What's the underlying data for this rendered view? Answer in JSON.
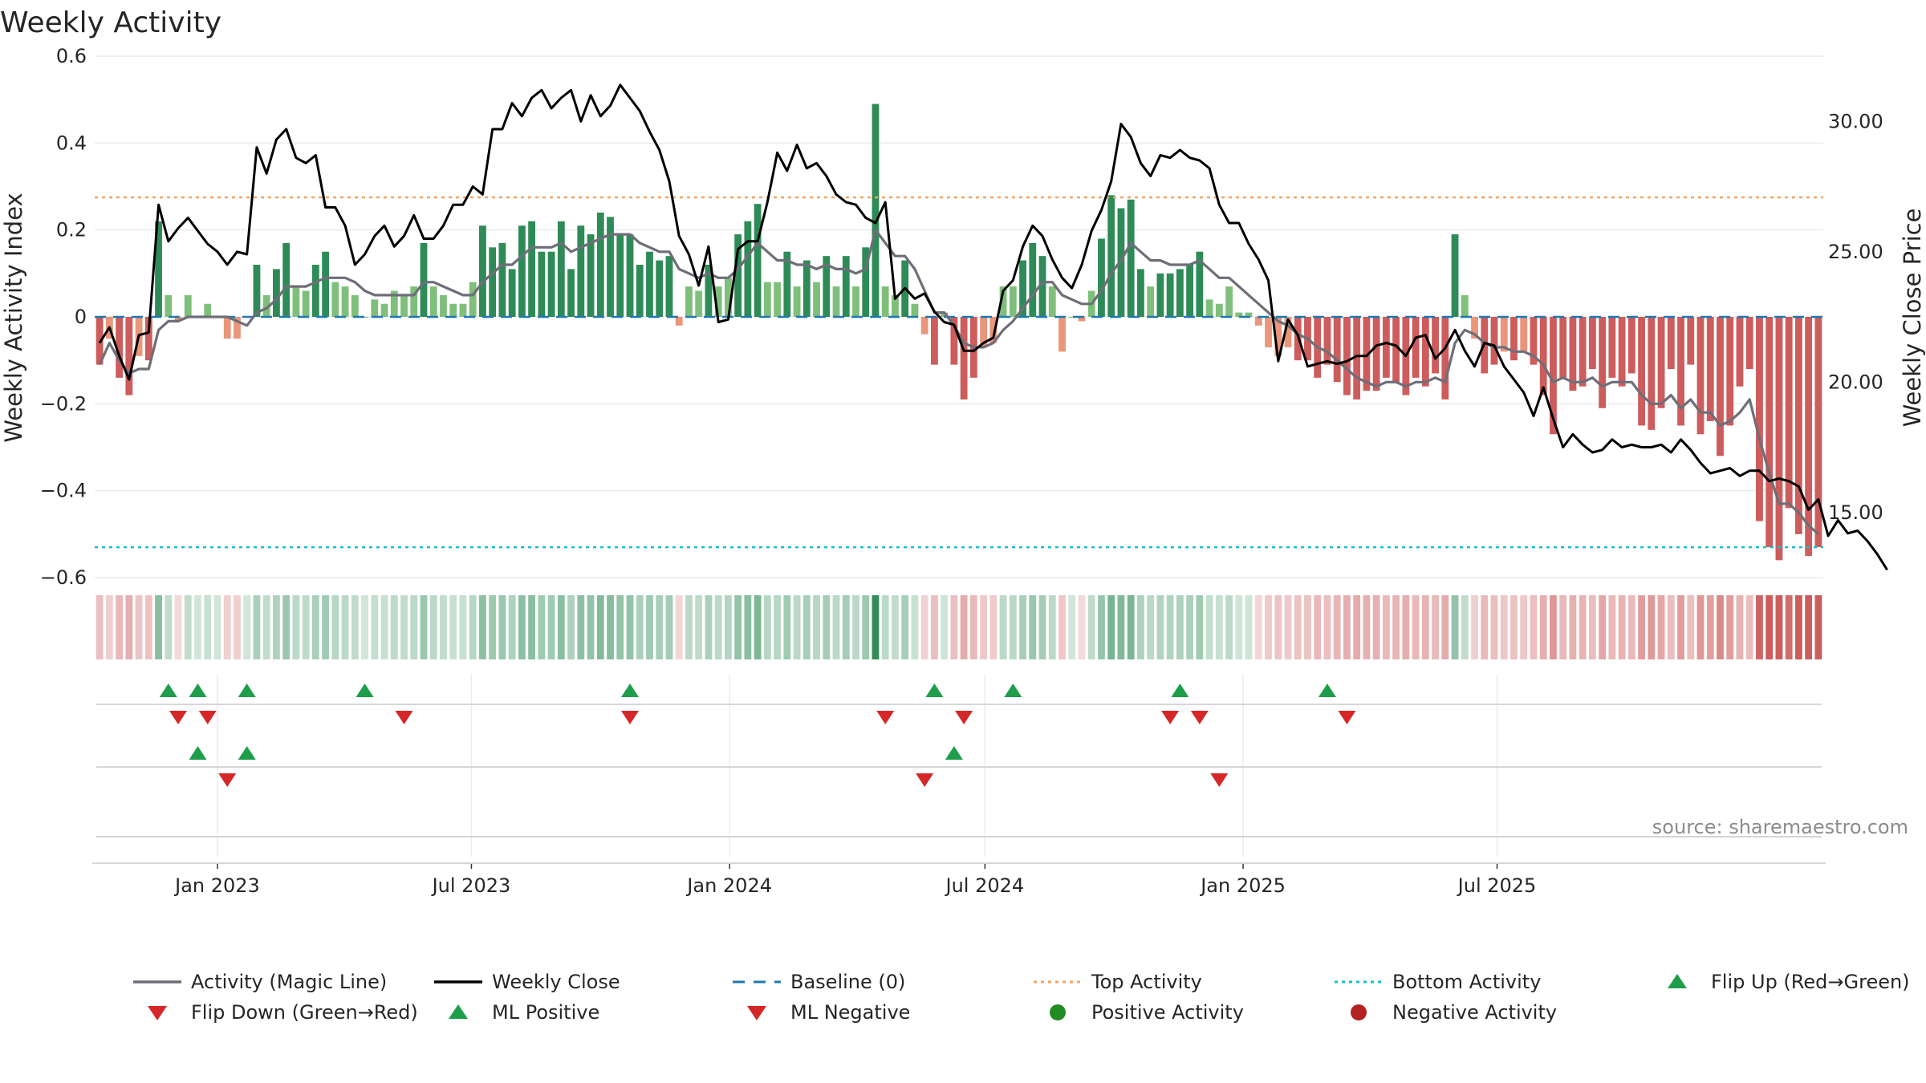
{
  "title": "Weekly Activity",
  "source": "source: sharemaestro.com",
  "colors": {
    "strong_positive": "#2e8b57",
    "weak_positive": "#7fbf7b",
    "strong_negative": "#cd5c5c",
    "weak_negative": "#e9967a",
    "magic_line": "#6e6e78",
    "close_line": "#000000",
    "baseline": "#1f77b4",
    "top_line": "#f4a460",
    "bottom_line": "#17becf",
    "flip_up": "#1e9e4a",
    "flip_down": "#d62728",
    "pos_dot": "#228b22",
    "neg_dot": "#b22222"
  },
  "chart_data": {
    "type": "bar",
    "title": "Weekly Activity",
    "ylabel": "Weekly Activity Index",
    "y2label": "Weekly Close Price",
    "ylim": [
      -0.6,
      0.6
    ],
    "y2lim": [
      12.5,
      32.5
    ],
    "yticks": [
      0.6,
      0.4,
      0.2,
      0,
      -0.2,
      -0.4,
      -0.6
    ],
    "ytick_labels": [
      "0.6",
      "0.4",
      "0.2",
      "0",
      "−0.2",
      "−0.4",
      "−0.6"
    ],
    "y2ticks": [
      30,
      25,
      20,
      15
    ],
    "y2tick_labels": [
      "30.00",
      "25.00",
      "20.00",
      "15.00"
    ],
    "x_start": "2022-10-09",
    "x_step_days": 7,
    "xticks": [
      "2023-01-01",
      "2023-07-01",
      "2024-01-01",
      "2024-07-01",
      "2025-01-01",
      "2025-07-01"
    ],
    "xtick_labels": [
      "Jan 2023",
      "Jul 2023",
      "Jan 2024",
      "Jul 2024",
      "Jan 2025",
      "Jul 2025"
    ],
    "grid": true,
    "legend_placement": "bottom",
    "reference_lines": {
      "baseline": 0,
      "top_activity": 0.275,
      "bottom_activity": -0.53
    },
    "series": [
      {
        "name": "Activity",
        "kind": "bar",
        "values": [
          -0.11,
          -0.05,
          -0.14,
          -0.18,
          -0.09,
          -0.1,
          0.22,
          0.05,
          -0.01,
          0.05,
          0,
          0.03,
          0,
          -0.05,
          -0.05,
          0,
          0.12,
          0.05,
          0.11,
          0.17,
          0.07,
          0.06,
          0.12,
          0.15,
          0.08,
          0.07,
          0.05,
          0,
          0.04,
          0.03,
          0.06,
          0.05,
          0.07,
          0.17,
          0.07,
          0.05,
          0.03,
          0.03,
          0.08,
          0.21,
          0.16,
          0.17,
          0.11,
          0.21,
          0.22,
          0.15,
          0.15,
          0.22,
          0.11,
          0.21,
          0.19,
          0.24,
          0.23,
          0.19,
          0.19,
          0.12,
          0.15,
          0.13,
          0.14,
          -0.02,
          0.07,
          0.06,
          0.12,
          0.07,
          0.09,
          0.19,
          0.22,
          0.26,
          0.08,
          0.08,
          0.15,
          0.07,
          0.13,
          0.08,
          0.14,
          0.07,
          0.14,
          0.07,
          0.16,
          0.49,
          0.07,
          0.05,
          0.13,
          0.03,
          -0.04,
          -0.11,
          0.01,
          -0.11,
          -0.19,
          -0.14,
          -0.07,
          -0.06,
          0.07,
          0.07,
          0.13,
          0.17,
          0.14,
          0.07,
          -0.08,
          0,
          -0.01,
          0.06,
          0.18,
          0.28,
          0.25,
          0.27,
          0.11,
          0.07,
          0.1,
          0.1,
          0.11,
          0.12,
          0.15,
          0.04,
          0.03,
          0.07,
          0.01,
          0.01,
          -0.02,
          -0.07,
          -0.09,
          -0.07,
          -0.1,
          -0.1,
          -0.14,
          -0.11,
          -0.15,
          -0.18,
          -0.19,
          -0.17,
          -0.17,
          -0.14,
          -0.15,
          -0.18,
          -0.14,
          -0.16,
          -0.13,
          -0.19,
          0.19,
          0.05,
          -0.05,
          -0.13,
          -0.11,
          -0.08,
          -0.1,
          -0.08,
          -0.11,
          -0.18,
          -0.27,
          -0.14,
          -0.17,
          -0.16,
          -0.12,
          -0.21,
          -0.14,
          -0.16,
          -0.13,
          -0.25,
          -0.26,
          -0.21,
          -0.12,
          -0.25,
          -0.11,
          -0.27,
          -0.24,
          -0.32,
          -0.25,
          -0.16,
          -0.12,
          -0.47,
          -0.53,
          -0.56,
          -0.44,
          -0.5,
          -0.55,
          -0.53
        ]
      },
      {
        "name": "Activity (Magic Line)",
        "kind": "line",
        "values": [
          -0.11,
          -0.06,
          -0.1,
          -0.13,
          -0.12,
          -0.12,
          -0.03,
          -0.01,
          -0.01,
          0,
          0,
          0,
          0,
          0,
          -0.01,
          -0.02,
          0.01,
          0.02,
          0.04,
          0.07,
          0.07,
          0.07,
          0.08,
          0.09,
          0.09,
          0.09,
          0.08,
          0.06,
          0.05,
          0.05,
          0.05,
          0.05,
          0.05,
          0.08,
          0.08,
          0.07,
          0.06,
          0.05,
          0.05,
          0.08,
          0.1,
          0.12,
          0.12,
          0.14,
          0.16,
          0.16,
          0.16,
          0.17,
          0.15,
          0.16,
          0.17,
          0.18,
          0.19,
          0.19,
          0.19,
          0.17,
          0.16,
          0.15,
          0.15,
          0.11,
          0.1,
          0.09,
          0.1,
          0.09,
          0.09,
          0.11,
          0.14,
          0.17,
          0.15,
          0.13,
          0.13,
          0.12,
          0.12,
          0.11,
          0.12,
          0.11,
          0.11,
          0.1,
          0.11,
          0.2,
          0.17,
          0.14,
          0.14,
          0.11,
          0.06,
          0.01,
          0.01,
          -0.02,
          -0.06,
          -0.07,
          -0.07,
          -0.06,
          -0.03,
          -0.01,
          0.02,
          0.05,
          0.08,
          0.08,
          0.05,
          0.04,
          0.03,
          0.03,
          0.06,
          0.1,
          0.13,
          0.17,
          0.15,
          0.13,
          0.13,
          0.12,
          0.12,
          0.12,
          0.13,
          0.11,
          0.09,
          0.09,
          0.07,
          0.05,
          0.03,
          0.01,
          -0.01,
          -0.02,
          -0.04,
          -0.05,
          -0.07,
          -0.08,
          -0.1,
          -0.12,
          -0.14,
          -0.15,
          -0.16,
          -0.15,
          -0.15,
          -0.16,
          -0.15,
          -0.15,
          -0.14,
          -0.15,
          -0.06,
          -0.03,
          -0.04,
          -0.06,
          -0.07,
          -0.07,
          -0.08,
          -0.08,
          -0.09,
          -0.11,
          -0.15,
          -0.14,
          -0.15,
          -0.15,
          -0.14,
          -0.16,
          -0.15,
          -0.15,
          -0.15,
          -0.18,
          -0.2,
          -0.2,
          -0.18,
          -0.21,
          -0.19,
          -0.22,
          -0.22,
          -0.25,
          -0.24,
          -0.22,
          -0.19,
          -0.28,
          -0.36,
          -0.43,
          -0.43,
          -0.45,
          -0.48,
          -0.5
        ]
      },
      {
        "name": "Weekly Close",
        "kind": "line",
        "axis": "right",
        "values": [
          21.5,
          22.1,
          21,
          20.1,
          21.8,
          21.9,
          26.8,
          25.4,
          25.9,
          26.3,
          25.8,
          25.3,
          25,
          24.5,
          25,
          24.9,
          29,
          28,
          29.3,
          29.7,
          28.6,
          28.4,
          28.7,
          26.7,
          26.7,
          26,
          24.5,
          24.9,
          25.6,
          26,
          25.2,
          25.6,
          26.4,
          25.5,
          25.5,
          26,
          26.8,
          26.8,
          27.5,
          27.2,
          29.7,
          29.7,
          30.7,
          30.2,
          30.9,
          31.2,
          30.5,
          30.9,
          31.2,
          30,
          31,
          30.2,
          30.6,
          31.4,
          30.9,
          30.4,
          29.6,
          28.9,
          27.7,
          25.6,
          24.9,
          23.7,
          25.2,
          22.3,
          22.4,
          25.1,
          25.4,
          25.4,
          26.9,
          28.8,
          28.1,
          29.1,
          28.2,
          28.4,
          27.9,
          27.2,
          26.9,
          26.8,
          26.3,
          26.1,
          26.9,
          23.2,
          23.6,
          23.2,
          23.4,
          22.7,
          22.3,
          22.2,
          21.2,
          21.2,
          21.5,
          21.7,
          23.5,
          23.9,
          25.2,
          26,
          25.6,
          24.7,
          24,
          23.6,
          24.5,
          25.8,
          26.6,
          27.7,
          29.9,
          29.4,
          28.4,
          27.9,
          28.7,
          28.6,
          28.9,
          28.6,
          28.5,
          28.2,
          26.8,
          26.1,
          26.1,
          25.3,
          24.7,
          23.9,
          20.8,
          22.4,
          21.8,
          20.6,
          20.7,
          20.8,
          20.7,
          20.8,
          21,
          21,
          21.4,
          21.5,
          21.4,
          21,
          21.7,
          21.8,
          20.9,
          21.3,
          22,
          21.2,
          20.6,
          21.5,
          21.4,
          20.6,
          20.1,
          19.6,
          18.7,
          19.8,
          18.6,
          17.5,
          18,
          17.6,
          17.3,
          17.4,
          17.8,
          17.5,
          17.6,
          17.5,
          17.5,
          17.6,
          17.3,
          17.8,
          17.4,
          16.9,
          16.5,
          16.6,
          16.7,
          16.4,
          16.6,
          16.6,
          16.2,
          16.3,
          16.2,
          16,
          15.1,
          15.5,
          14.1,
          14.7,
          14.2,
          14.3,
          13.9,
          13.4,
          12.8
        ]
      }
    ],
    "flip_markers_row1": {
      "flip_up": [
        "2022-11-27",
        "2022-12-18",
        "2023-01-22",
        "2023-04-16",
        "2023-10-22",
        "2024-05-26",
        "2024-07-21",
        "2024-11-17",
        "2025-03-02"
      ],
      "flip_down": [
        "2022-12-04",
        "2022-12-25",
        "2023-05-14",
        "2023-10-22",
        "2024-04-21",
        "2024-06-16",
        "2024-11-10",
        "2024-12-01",
        "2025-03-16"
      ]
    },
    "flip_markers_row2": {
      "ml_positive": [
        "2022-12-18",
        "2023-01-22",
        "2024-06-09"
      ],
      "ml_negative": [
        "2023-01-08",
        "2024-05-19",
        "2024-12-15"
      ]
    },
    "activity_points": {
      "positive": [],
      "negative": []
    }
  },
  "legend": [
    {
      "label": "Activity (Magic Line)",
      "symbol": "line",
      "color": "#6e6e78"
    },
    {
      "label": "Weekly Close",
      "symbol": "line",
      "color": "#000000"
    },
    {
      "label": "Baseline (0)",
      "symbol": "dash",
      "color": "#1f77b4"
    },
    {
      "label": "Top Activity",
      "symbol": "dot-line",
      "color": "#f4a460"
    },
    {
      "label": "Bottom Activity",
      "symbol": "dot-line",
      "color": "#17becf"
    },
    {
      "label": "Flip Up (Red→Green)",
      "symbol": "tri-up",
      "color": "#1e9e4a"
    },
    {
      "label": "Flip Down (Green→Red)",
      "symbol": "tri-down",
      "color": "#d62728"
    },
    {
      "label": "ML Positive",
      "symbol": "tri-up",
      "color": "#1e9e4a"
    },
    {
      "label": "ML Negative",
      "symbol": "tri-down",
      "color": "#d62728"
    },
    {
      "label": "Positive Activity",
      "symbol": "circle",
      "color": "#228b22"
    },
    {
      "label": "Negative Activity",
      "symbol": "circle",
      "color": "#b22222"
    }
  ]
}
